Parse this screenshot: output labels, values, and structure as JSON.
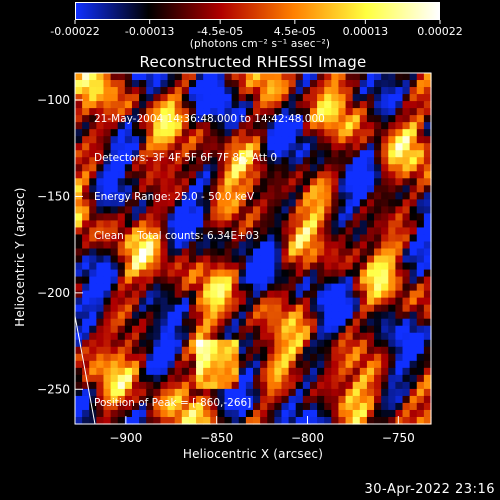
{
  "colorbar": {
    "tick_labels": [
      "-0.00022",
      "-0.00013",
      "-4.5e-05",
      "4.5e-05",
      "0.00013",
      "0.00022"
    ],
    "tick_values": [
      -0.00022,
      -0.00013,
      -4.5e-05,
      4.5e-05,
      0.00013,
      0.00022
    ],
    "units": "(photons cm⁻² s⁻¹ asec⁻²)",
    "range": [
      -0.00022,
      0.00022
    ],
    "colors": [
      "#1030ff",
      "#000000",
      "#b00000",
      "#ff8000",
      "#ffff40",
      "#ffffff"
    ]
  },
  "chart_data": {
    "type": "heatmap",
    "title": "Reconstructed RHESSI Image",
    "xlabel": "Heliocentric X (arcsec)",
    "ylabel": "Heliocentric Y (arcsec)",
    "xlim": [
      -928,
      -732
    ],
    "ylim": [
      -268,
      -86
    ],
    "x_ticks": [
      -900,
      -850,
      -800,
      -750
    ],
    "y_ticks": [
      -100,
      -150,
      -200,
      -250
    ],
    "x_tick_labels": [
      "−900",
      "−850",
      "−800",
      "−750"
    ],
    "y_tick_labels": [
      "−100",
      "−150",
      "−200",
      "−250"
    ],
    "annotations": [
      "21-May-2004 14:36:48.000 to 14:42:48.000",
      "Detectors: 3F 4F 5F 6F 7F 8F, Att 0",
      "Energy Range: 25.0 - 50.0 keV",
      "Clean    Total counts: 6.34E+03"
    ],
    "peak_label": "Position of Peak = [-860,-266]",
    "limb_line": [
      [
        -928,
        -212
      ],
      [
        -917,
        -268
      ]
    ]
  },
  "footer": {
    "date": "30-Apr-2022 23:16"
  }
}
